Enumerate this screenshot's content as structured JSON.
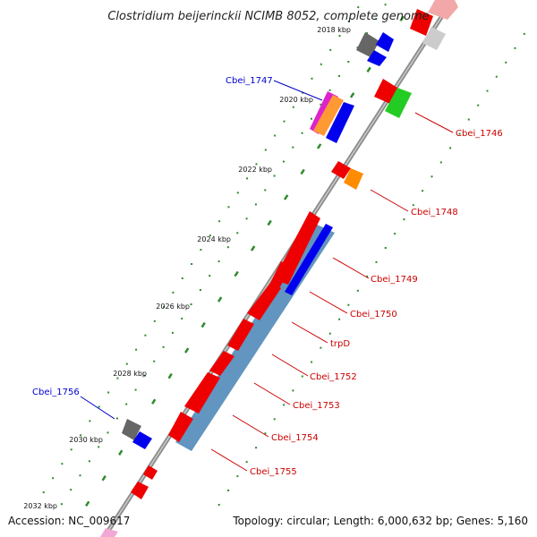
{
  "title": "Clostridium beijerinckii NCIMB 8052, complete genome",
  "footer": {
    "accession": "Accession: NC_009617",
    "summary": "Topology: circular; Length: 6,000,632 bp; Genes: 5,160"
  },
  "ticks": [
    {
      "label": "2018 kbp"
    },
    {
      "label": "2020 kbp"
    },
    {
      "label": "2022 kbp"
    },
    {
      "label": "2024 kbp"
    },
    {
      "label": "2026 kbp"
    },
    {
      "label": "2028 kbp"
    },
    {
      "label": "2030 kbp"
    },
    {
      "label": "2032 kbp"
    }
  ],
  "gene_labels": [
    {
      "text": "Cbei_1747",
      "color": "#0000cc"
    },
    {
      "text": "Cbei_1746",
      "color": "#cc0000"
    },
    {
      "text": "Cbei_1748",
      "color": "#cc0000"
    },
    {
      "text": "Cbei_1749",
      "color": "#cc0000"
    },
    {
      "text": "Cbei_1750",
      "color": "#cc0000"
    },
    {
      "text": "trpD",
      "color": "#cc0000"
    },
    {
      "text": "Cbei_1752",
      "color": "#cc0000"
    },
    {
      "text": "Cbei_1753",
      "color": "#cc0000"
    },
    {
      "text": "Cbei_1754",
      "color": "#cc0000"
    },
    {
      "text": "Cbei_1755",
      "color": "#cc0000"
    },
    {
      "text": "Cbei_1756",
      "color": "#0000cc"
    }
  ],
  "colors": {
    "forward_cds": "#ee0000",
    "reverse_cds": "#0000ee",
    "operon_band": "#4682b4",
    "backbone": "#888888",
    "dots": "#2e8b2e",
    "other_gene_gray": "#666666",
    "other_gene_green": "#22cc22",
    "other_gene_orange": "#ff8c00"
  }
}
